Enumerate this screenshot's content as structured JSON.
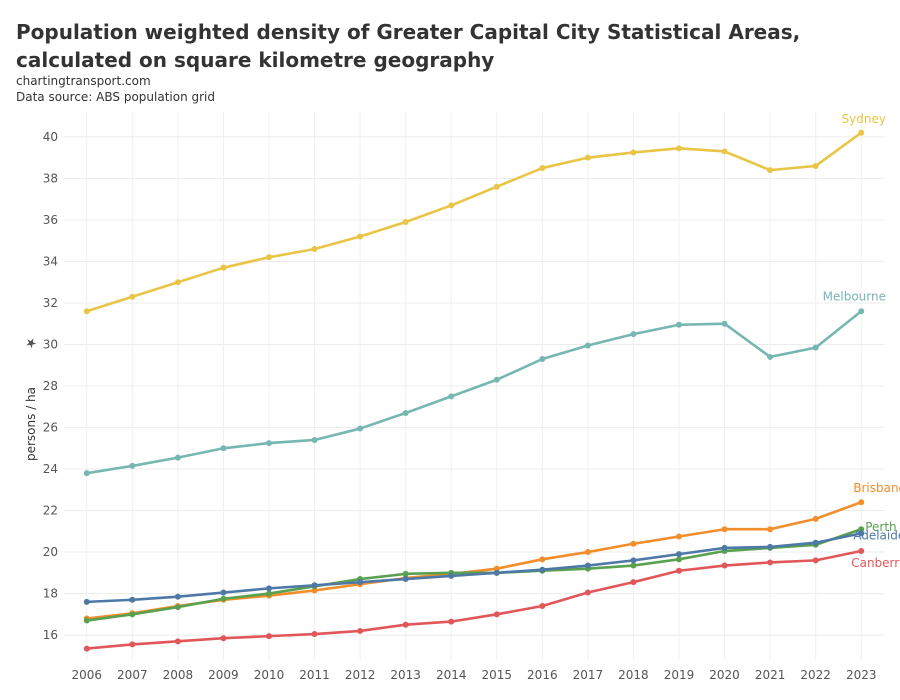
{
  "header": {
    "title": "Population weighted density of Greater Capital City Statistical Areas, calculated on square kilometre geography",
    "source_line1": "chartingtransport.com",
    "source_line2": "Data source: ABS population grid"
  },
  "chart_data": {
    "type": "line",
    "title": "Population weighted density of Greater Capital City Statistical Areas, calculated on square kilometre geography",
    "xlabel": "",
    "ylabel": "persons / ha",
    "x": [
      2006,
      2007,
      2008,
      2009,
      2010,
      2011,
      2012,
      2013,
      2014,
      2015,
      2016,
      2017,
      2018,
      2019,
      2020,
      2021,
      2022,
      2023
    ],
    "ylim": [
      14.8,
      41.2
    ],
    "yticks": [
      16,
      18,
      20,
      22,
      24,
      26,
      28,
      30,
      32,
      34,
      36,
      38,
      40
    ],
    "grid": true,
    "legend": "direct labels at line ends",
    "series": [
      {
        "name": "Sydney",
        "color": "#e8c547",
        "values": [
          31.6,
          32.3,
          33.0,
          33.7,
          34.2,
          34.6,
          35.2,
          35.9,
          36.7,
          37.6,
          38.5,
          39.0,
          39.25,
          39.45,
          39.3,
          38.4,
          38.6,
          40.2
        ]
      },
      {
        "name": "Melbourne",
        "color": "#76b7b2",
        "values": [
          23.8,
          24.15,
          24.55,
          25.0,
          25.25,
          25.4,
          25.95,
          26.7,
          27.5,
          28.3,
          29.3,
          29.95,
          30.5,
          30.95,
          31.0,
          29.4,
          29.85,
          31.6
        ]
      },
      {
        "name": "Brisbane",
        "color": "#f28e2b",
        "values": [
          16.8,
          17.05,
          17.4,
          17.7,
          17.9,
          18.15,
          18.45,
          18.75,
          18.95,
          19.2,
          19.65,
          20.0,
          20.4,
          20.75,
          21.1,
          21.1,
          21.6,
          22.4
        ]
      },
      {
        "name": "Perth",
        "color": "#59a14f",
        "values": [
          16.7,
          17.0,
          17.35,
          17.75,
          18.0,
          18.35,
          18.7,
          18.95,
          19.0,
          19.0,
          19.1,
          19.2,
          19.35,
          19.65,
          20.05,
          20.2,
          20.35,
          21.1
        ]
      },
      {
        "name": "Adelaide",
        "color": "#4e79a7",
        "values": [
          17.6,
          17.7,
          17.85,
          18.05,
          18.25,
          18.4,
          18.55,
          18.7,
          18.85,
          19.0,
          19.15,
          19.35,
          19.6,
          19.9,
          20.2,
          20.25,
          20.45,
          20.9
        ]
      },
      {
        "name": "Canberra",
        "color": "#e15759",
        "values": [
          15.35,
          15.55,
          15.7,
          15.85,
          15.95,
          16.05,
          16.2,
          16.5,
          16.65,
          17.0,
          17.4,
          18.05,
          18.55,
          19.1,
          19.35,
          19.5,
          19.6,
          20.05
        ]
      }
    ]
  }
}
